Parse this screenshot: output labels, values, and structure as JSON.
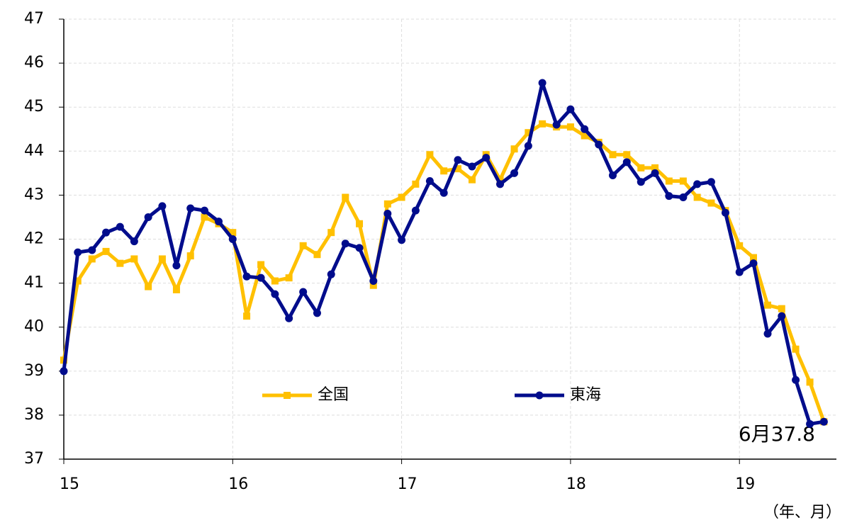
{
  "chart_data": {
    "type": "line",
    "x": [
      15,
      15.083,
      15.167,
      15.25,
      15.333,
      15.417,
      15.5,
      15.583,
      15.667,
      15.75,
      15.833,
      15.917,
      16,
      16.083,
      16.167,
      16.25,
      16.333,
      16.417,
      16.5,
      16.583,
      16.667,
      16.75,
      16.833,
      16.917,
      17,
      17.083,
      17.167,
      17.25,
      17.333,
      17.417,
      17.5,
      17.583,
      17.667,
      17.75,
      17.833,
      17.917,
      18,
      18.083,
      18.167,
      18.25,
      18.333,
      18.417,
      18.5,
      18.583,
      18.667,
      18.75,
      18.833,
      18.917,
      19,
      19.083,
      19.167,
      19.25,
      19.333,
      19.417,
      19.5
    ],
    "series": [
      {
        "name": "全国",
        "color": "#FFC000",
        "marker": "square",
        "values": [
          39.25,
          41.05,
          41.55,
          41.72,
          41.45,
          41.55,
          40.92,
          41.55,
          40.85,
          41.62,
          42.5,
          42.35,
          42.15,
          40.25,
          41.42,
          41.05,
          41.12,
          41.85,
          41.65,
          42.15,
          42.95,
          42.35,
          40.95,
          42.8,
          42.95,
          43.25,
          43.92,
          43.55,
          43.6,
          43.35,
          43.92,
          43.35,
          44.05,
          44.42,
          44.62,
          44.55,
          44.55,
          44.35,
          44.2,
          43.92,
          43.92,
          43.62,
          43.62,
          43.32,
          43.32,
          42.95,
          42.82,
          42.65,
          41.85,
          41.58,
          40.5,
          40.42,
          39.5,
          38.75,
          37.85
        ]
      },
      {
        "name": "東海",
        "color": "#000C8C",
        "marker": "circle",
        "values": [
          39.0,
          41.7,
          41.75,
          42.15,
          42.28,
          41.95,
          42.5,
          42.75,
          41.4,
          42.7,
          42.65,
          42.4,
          42.0,
          41.15,
          41.12,
          40.75,
          40.2,
          40.8,
          40.32,
          41.2,
          41.9,
          41.8,
          41.05,
          42.58,
          41.98,
          42.65,
          43.32,
          43.05,
          43.8,
          43.65,
          43.85,
          43.25,
          43.5,
          44.12,
          45.55,
          44.6,
          44.95,
          44.5,
          44.15,
          43.45,
          43.75,
          43.3,
          43.5,
          42.98,
          42.95,
          43.25,
          43.3,
          42.6,
          41.25,
          41.45,
          39.85,
          40.25,
          38.8,
          37.8,
          37.85
        ]
      }
    ],
    "xlim": [
      15,
      19.574
    ],
    "xticks": [
      15,
      16,
      17,
      18,
      19
    ],
    "ylim": [
      37,
      47
    ],
    "yticks": [
      37,
      38,
      39,
      40,
      41,
      42,
      43,
      44,
      45,
      46,
      47
    ],
    "x_label": "（年、月）",
    "annotation": "6月37.8",
    "grid": true,
    "legend": "center"
  }
}
